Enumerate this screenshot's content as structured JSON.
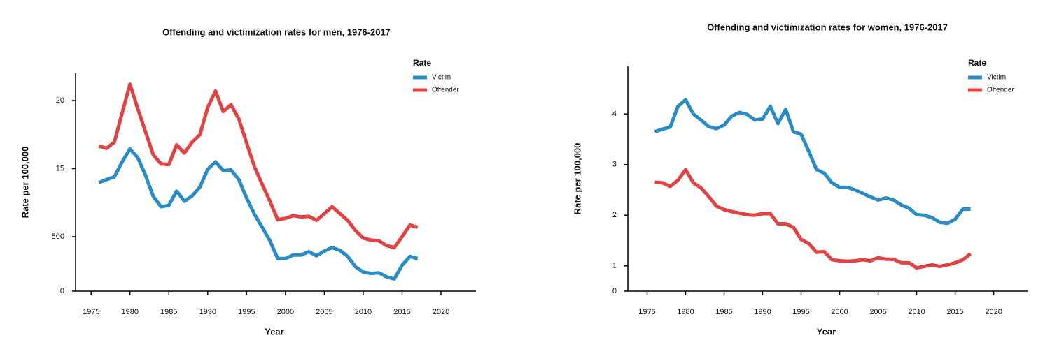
{
  "chart_data": [
    {
      "type": "line",
      "title": "Offending and victimization rates for men, 1976-2017",
      "xlabel": "Year",
      "ylabel": "Rate per 100,000",
      "legend_title": "Rate",
      "legend": "top-right",
      "x": [
        1976,
        1977,
        1978,
        1979,
        1980,
        1981,
        1982,
        1983,
        1984,
        1985,
        1986,
        1987,
        1988,
        1989,
        1990,
        1991,
        1992,
        1993,
        1994,
        1995,
        1996,
        1997,
        1998,
        1999,
        2000,
        2001,
        2002,
        2003,
        2004,
        2005,
        2006,
        2007,
        2008,
        2009,
        2010,
        2011,
        2012,
        2013,
        2014,
        2015,
        2016,
        2017
      ],
      "series": [
        {
          "name": "Victim",
          "color": "#2b8cc4",
          "values": [
            13.97,
            14.2,
            14.4,
            15.5,
            16.45,
            15.8,
            14.5,
            12.95,
            12.2,
            12.3,
            13.35,
            12.6,
            13.0,
            13.65,
            14.95,
            15.5,
            14.85,
            14.9,
            14.2,
            12.85,
            11.65,
            10.7,
            9.7,
            8.4,
            8.4,
            8.65,
            8.65,
            8.9,
            8.6,
            8.95,
            9.2,
            9.0,
            8.55,
            7.8,
            7.4,
            7.3,
            7.35,
            7.05,
            6.9,
            7.9,
            8.55,
            8.4
          ]
        },
        {
          "name": "Offender",
          "color": "#e04343",
          "values": [
            16.65,
            16.5,
            16.95,
            19.1,
            21.2,
            19.4,
            17.7,
            16.0,
            15.35,
            15.3,
            16.75,
            16.15,
            16.95,
            17.5,
            19.5,
            20.7,
            19.2,
            19.7,
            18.65,
            16.9,
            15.15,
            13.85,
            12.6,
            11.25,
            11.35,
            11.55,
            11.45,
            11.5,
            11.2,
            11.7,
            12.2,
            11.7,
            11.2,
            10.45,
            9.9,
            9.75,
            9.7,
            9.35,
            9.2,
            10.0,
            10.85,
            10.7
          ]
        }
      ],
      "xlim": [
        1973,
        2024.5
      ],
      "xticks": [
        1975,
        1980,
        1985,
        1990,
        1995,
        2000,
        2005,
        2010,
        2015,
        2020
      ],
      "ylim": [
        6,
        22
      ],
      "yticks": [
        {
          "value": 6,
          "label": "0"
        },
        {
          "value": 10,
          "label": "500"
        },
        15,
        20
      ]
    },
    {
      "type": "line",
      "title": "Offending and victimization rates for women, 1976-2017",
      "xlabel": "Year",
      "ylabel": "Rate per 100,000",
      "legend_title": "Rate",
      "legend": "top-right",
      "x": [
        1976,
        1977,
        1978,
        1979,
        1980,
        1981,
        1982,
        1983,
        1984,
        1985,
        1986,
        1987,
        1988,
        1989,
        1990,
        1991,
        1992,
        1993,
        1994,
        1995,
        1996,
        1997,
        1998,
        1999,
        2000,
        2001,
        2002,
        2003,
        2004,
        2005,
        2006,
        2007,
        2008,
        2009,
        2010,
        2011,
        2012,
        2013,
        2014,
        2015,
        2016,
        2017
      ],
      "series": [
        {
          "name": "Victim",
          "color": "#2b8cc4",
          "values": [
            3.65,
            3.7,
            3.74,
            4.15,
            4.28,
            4.0,
            3.88,
            3.75,
            3.71,
            3.78,
            3.96,
            4.03,
            3.99,
            3.88,
            3.9,
            4.15,
            3.81,
            4.09,
            3.65,
            3.6,
            3.26,
            2.9,
            2.83,
            2.64,
            2.55,
            2.55,
            2.5,
            2.43,
            2.36,
            2.3,
            2.34,
            2.3,
            2.2,
            2.14,
            2.01,
            2.0,
            1.95,
            1.86,
            1.84,
            1.92,
            2.12,
            2.12
          ]
        },
        {
          "name": "Offender",
          "color": "#e04343",
          "values": [
            2.65,
            2.64,
            2.57,
            2.69,
            2.9,
            2.64,
            2.54,
            2.37,
            2.18,
            2.11,
            2.07,
            2.04,
            2.01,
            2.0,
            2.03,
            2.03,
            1.83,
            1.83,
            1.76,
            1.52,
            1.44,
            1.27,
            1.28,
            1.12,
            1.1,
            1.09,
            1.1,
            1.12,
            1.1,
            1.16,
            1.13,
            1.13,
            1.06,
            1.06,
            0.96,
            0.99,
            1.02,
            0.99,
            1.02,
            1.06,
            1.12,
            1.24
          ]
        }
      ],
      "xlim": [
        1972.5,
        2024.4
      ],
      "xticks": [
        1975,
        1980,
        1985,
        1990,
        1995,
        2000,
        2005,
        2010,
        2015,
        2020
      ],
      "ylim": [
        0.5,
        4.94
      ],
      "yticks": [
        {
          "value": 0.5,
          "label": "0"
        },
        1,
        2,
        3,
        4
      ]
    }
  ]
}
